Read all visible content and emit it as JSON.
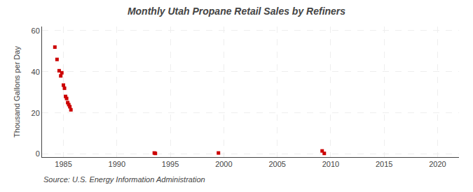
{
  "chart_data": {
    "type": "scatter",
    "title": "Monthly Utah Propane Retail Sales by Refiners",
    "ylabel": "Thousand Gallons per Day",
    "annotations": [
      "Source: U.S. Energy Information Administration"
    ],
    "color": "#cc0000",
    "marker": "square",
    "grid": true,
    "xlim": [
      1983,
      2022
    ],
    "ylim": [
      -1.5,
      62
    ],
    "xticks": [
      1985,
      1990,
      1995,
      2000,
      2005,
      2010,
      2015,
      2020
    ],
    "yticks": [
      0,
      20,
      40,
      60
    ],
    "x": [
      1984.2,
      1984.4,
      1984.6,
      1984.75,
      1984.85,
      1985.0,
      1985.1,
      1985.2,
      1985.3,
      1985.4,
      1985.5,
      1985.6,
      1985.7,
      1993.5,
      1993.6,
      1999.5,
      2009.2,
      2009.4
    ],
    "values": [
      52.0,
      46.0,
      40.5,
      38.0,
      39.5,
      33.5,
      32.0,
      28.0,
      27.0,
      25.0,
      24.0,
      23.0,
      21.5,
      0.5,
      0.3,
      0.5,
      1.5,
      0.3
    ]
  }
}
